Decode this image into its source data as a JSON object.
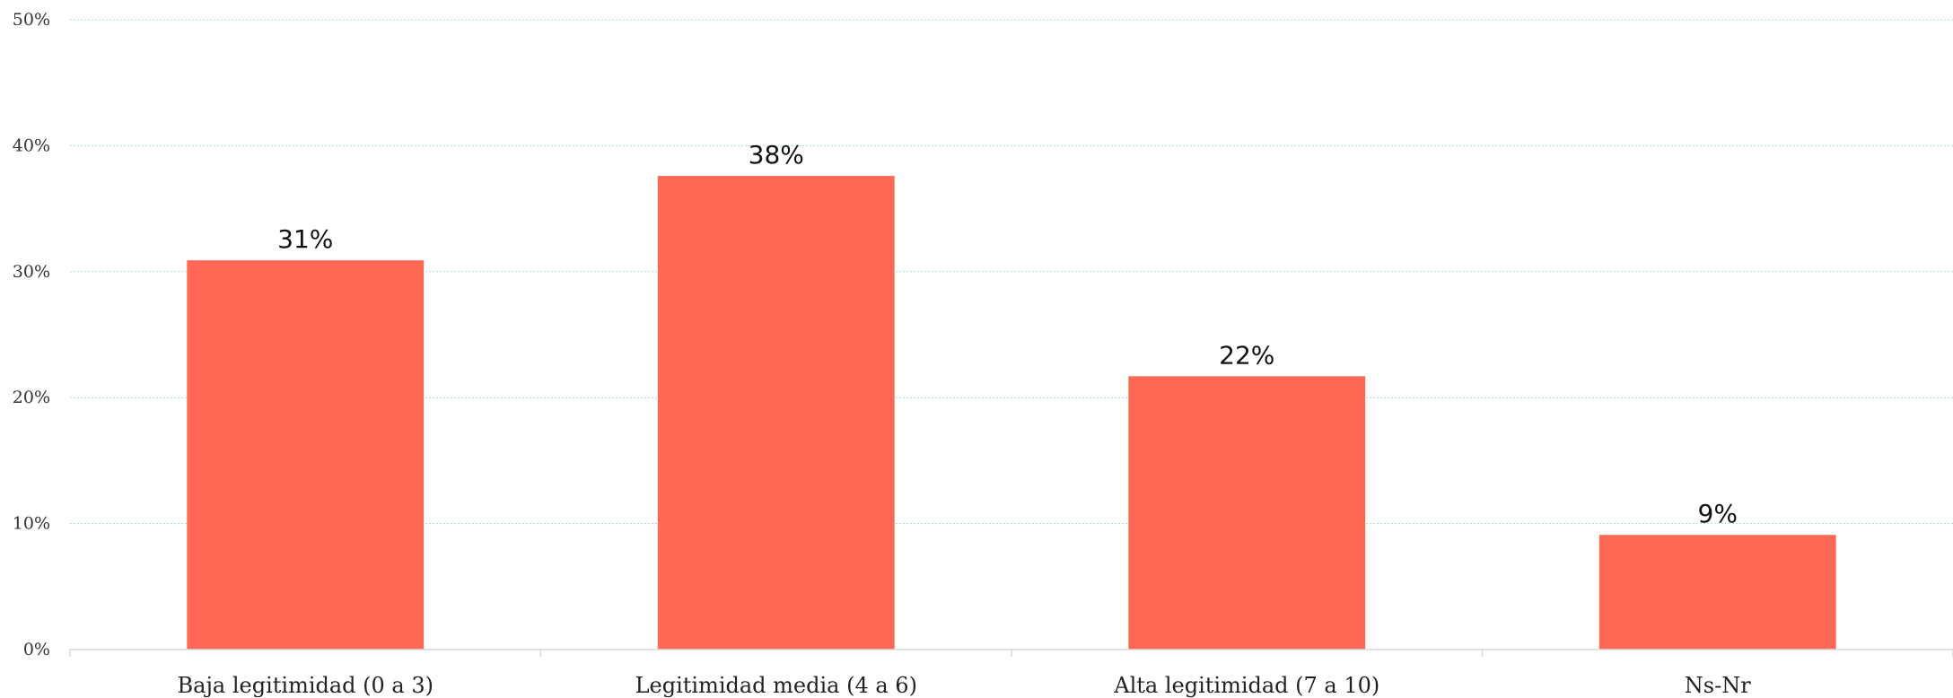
{
  "chart_data": {
    "type": "bar",
    "categories": [
      "Baja legitimidad (0 a 3)",
      "Legitimidad media (4 a 6)",
      "Alta legitimidad (7 a 10)",
      "Ns-Nr"
    ],
    "values": [
      30.9,
      37.6,
      21.7,
      9.1
    ],
    "data_labels": [
      "31%",
      "38%",
      "22%",
      "9%"
    ],
    "ylim": [
      0,
      50
    ],
    "yticks": [
      0,
      10,
      20,
      30,
      40,
      50
    ],
    "ytick_labels": [
      "0%",
      "10%",
      "20%",
      "30%",
      "40%",
      "50%"
    ],
    "title": "",
    "xlabel": "",
    "ylabel": "",
    "grid": true,
    "legend": "none",
    "bar_color": "#ff6854",
    "grid_color": "#a6dbe6"
  }
}
